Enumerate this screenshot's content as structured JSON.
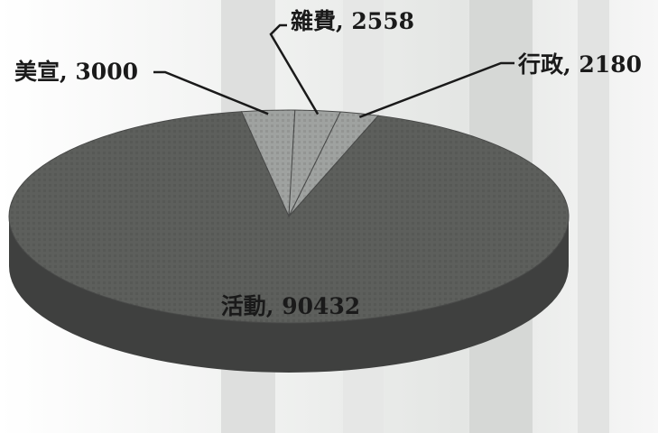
{
  "chart_data": {
    "type": "pie",
    "title": "",
    "slices": [
      {
        "label": "活動",
        "value": 90432,
        "text": "活動, 90432"
      },
      {
        "label": "美宣",
        "value": 3000,
        "text": "美宣, 3000"
      },
      {
        "label": "雜費",
        "value": 2558,
        "text": "雜費, 2558"
      },
      {
        "label": "行政",
        "value": 2180,
        "text": "行政, 2180"
      }
    ],
    "legend": "none",
    "style": "3d-tilted",
    "colors": {
      "main_slice": "#5d5f5c",
      "minor_slices": "#9fa2a0",
      "side": "#3f403f",
      "background_stripes": "#d9dbd9"
    }
  }
}
